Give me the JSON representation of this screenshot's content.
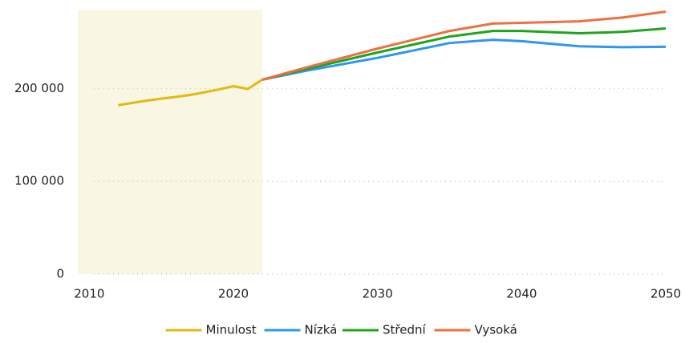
{
  "chart_data": {
    "type": "line",
    "shaded_range": {
      "from": 2009.2,
      "to": 2022,
      "color": "#faf6e4"
    },
    "xlim": [
      2009.2,
      2050
    ],
    "xticks": [
      2010,
      2020,
      2030,
      2040,
      2050
    ],
    "ylim": [
      0,
      285000
    ],
    "yticks": [
      0,
      {
        "value": 100000,
        "label": "100 000"
      },
      {
        "value": 200000,
        "label": "200 000"
      }
    ],
    "grid": true,
    "legend": "bottom",
    "series": [
      {
        "name": "Minulost",
        "color": "#e3b90b",
        "x": [
          2012,
          2013,
          2014,
          2015,
          2016,
          2017,
          2018,
          2019,
          2020,
          2021,
          2022
        ],
        "values": [
          182000,
          184500,
          187000,
          189000,
          191000,
          193000,
          196000,
          199000,
          202500,
          199500,
          209500
        ]
      },
      {
        "name": "Nízká",
        "color": "#2f96f0",
        "x": [
          2022,
          2025,
          2030,
          2035,
          2038,
          2040,
          2044,
          2047,
          2050
        ],
        "values": [
          209500,
          219000,
          233000,
          249000,
          252500,
          251000,
          245500,
          244500,
          245000
        ]
      },
      {
        "name": "Střední",
        "color": "#1ea51e",
        "x": [
          2022,
          2025,
          2030,
          2035,
          2038,
          2040,
          2044,
          2047,
          2050
        ],
        "values": [
          209500,
          220700,
          238800,
          256000,
          262000,
          262000,
          259500,
          261000,
          264700
        ]
      },
      {
        "name": "Vysoká",
        "color": "#ec7042",
        "x": [
          2022,
          2025,
          2030,
          2035,
          2038,
          2040,
          2044,
          2047,
          2050
        ],
        "values": [
          209500,
          222400,
          243000,
          262000,
          270000,
          270700,
          272400,
          276500,
          282800
        ]
      }
    ]
  }
}
